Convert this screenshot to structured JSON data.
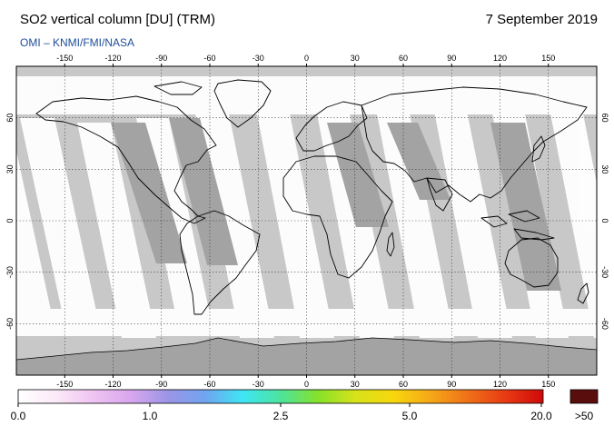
{
  "header": {
    "title": "SO2 vertical column [DU] (TRM)",
    "date": "7 September 2019",
    "credit": "OMI  –  KNMI/FMI/NASA"
  },
  "map": {
    "projection": "equirectangular",
    "lon_range": [
      -180,
      180
    ],
    "lat_range": [
      -90,
      90
    ],
    "lon_ticks": [
      "-150",
      "-120",
      "-90",
      "-60",
      "-30",
      "0",
      "30",
      "60",
      "90",
      "120",
      "150"
    ],
    "lat_ticks_left": [
      "60",
      "30",
      "0",
      "-30",
      "-60"
    ],
    "lat_ticks_right": [
      "60",
      "30",
      "0",
      "-30",
      "-60"
    ],
    "graticule": "dotted, 30° spacing",
    "colors": {
      "no_data": "#c8c8c8",
      "swath_gap": "#c8c8c8",
      "land_dark_swath": "#a0a0a0",
      "antarctica": "#a0a0a0",
      "near_zero": "#ffffff",
      "coastline": "#000000"
    }
  },
  "colorbar": {
    "tick_labels": [
      "0.0",
      "1.0",
      "2.5",
      "5.0",
      "20.0"
    ],
    "overflow_label": ">50",
    "colors": [
      "#ffffff",
      "#fbeaf8",
      "#efc4f1",
      "#d8a6ee",
      "#9b95e6",
      "#6fa4f0",
      "#3ee6f4",
      "#4de39d",
      "#86e22a",
      "#d7e21a",
      "#f7d70e",
      "#f5a818",
      "#ef7018",
      "#e83a14",
      "#cf0909"
    ],
    "overflow_color": "#5a0d0d"
  }
}
